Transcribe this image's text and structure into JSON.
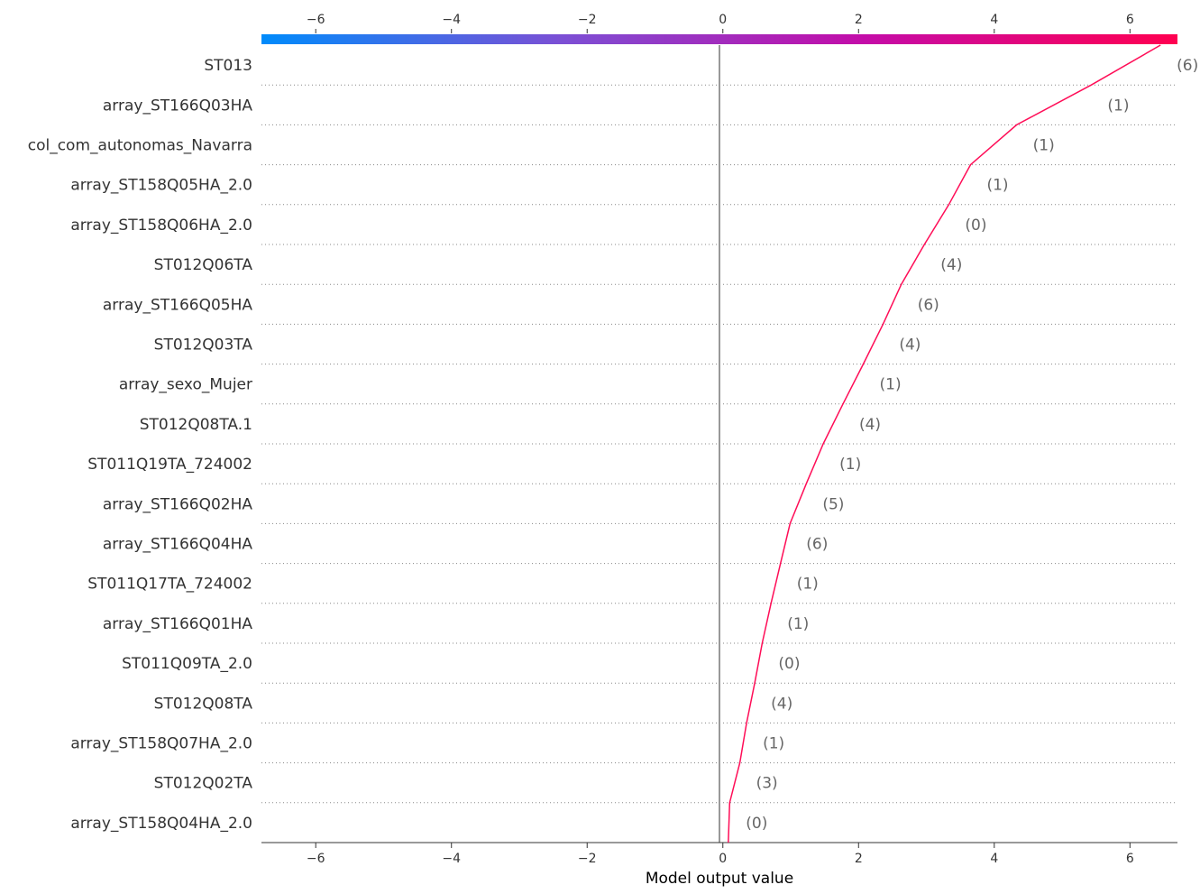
{
  "chart_data": {
    "type": "line",
    "title": "",
    "xlabel": "Model output value",
    "ylabel": "",
    "xlim": [
      -6.8,
      6.7
    ],
    "xticks": [
      -6,
      -4,
      -2,
      0,
      2,
      4,
      6
    ],
    "xtick_labels": [
      "−6",
      "−4",
      "−2",
      "0",
      "2",
      "4",
      "6"
    ],
    "base_value": -0.05,
    "grid": "dotted horizontal lines between features",
    "colorbar": {
      "position": "top",
      "stops": [
        "#008bfb",
        "#7c4fd4",
        "#c40ca8",
        "#ff0051"
      ]
    },
    "features": [
      {
        "name": "ST013",
        "value_label": "(6)"
      },
      {
        "name": "array_ST166Q03HA",
        "value_label": "(1)"
      },
      {
        "name": "col_com_autonomas_Navarra",
        "value_label": "(1)"
      },
      {
        "name": "array_ST158Q05HA_2.0",
        "value_label": "(1)"
      },
      {
        "name": "array_ST158Q06HA_2.0",
        "value_label": "(0)"
      },
      {
        "name": "ST012Q06TA",
        "value_label": "(4)"
      },
      {
        "name": "array_ST166Q05HA",
        "value_label": "(6)"
      },
      {
        "name": "ST012Q03TA",
        "value_label": "(4)"
      },
      {
        "name": "array_sexo_Mujer",
        "value_label": "(1)"
      },
      {
        "name": "ST012Q08TA.1",
        "value_label": "(4)"
      },
      {
        "name": "ST011Q19TA_724002",
        "value_label": "(1)"
      },
      {
        "name": "array_ST166Q02HA",
        "value_label": "(5)"
      },
      {
        "name": "array_ST166Q04HA",
        "value_label": "(6)"
      },
      {
        "name": "ST011Q17TA_724002",
        "value_label": "(1)"
      },
      {
        "name": "array_ST166Q01HA",
        "value_label": "(1)"
      },
      {
        "name": "ST011Q09TA_2.0",
        "value_label": "(0)"
      },
      {
        "name": "ST012Q08TA",
        "value_label": "(4)"
      },
      {
        "name": "array_ST158Q07HA_2.0",
        "value_label": "(1)"
      },
      {
        "name": "ST012Q02TA",
        "value_label": "(3)"
      },
      {
        "name": "array_ST158Q04HA_2.0",
        "value_label": "(0)"
      }
    ],
    "series": [
      {
        "color": "#ff0d57",
        "values_bottom_to_top": [
          0.1,
          0.25,
          0.35,
          0.47,
          0.58,
          0.71,
          0.85,
          0.99,
          1.23,
          1.48,
          1.77,
          2.07,
          2.36,
          2.63,
          2.97,
          3.33,
          3.65,
          4.33,
          5.43,
          6.45
        ]
      }
    ]
  }
}
